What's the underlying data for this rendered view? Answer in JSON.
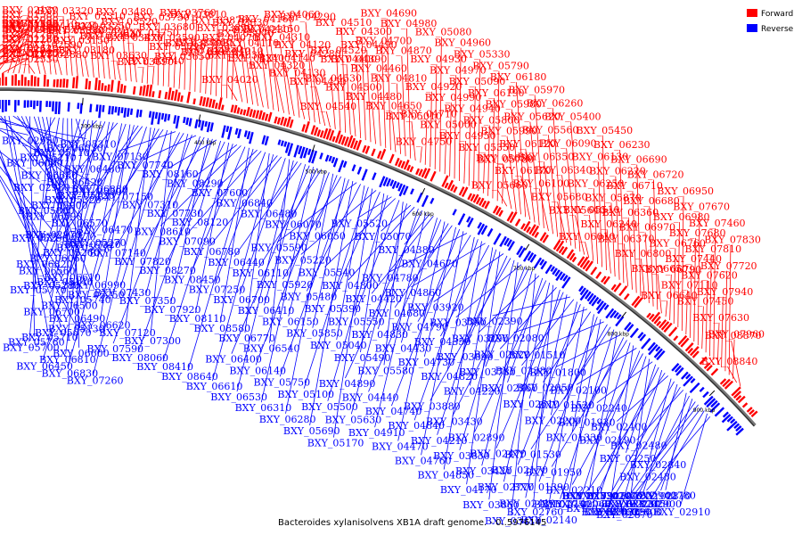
{
  "caption": "Bacteroides xylanisolvens XB1A draft genome. - 0..5976145",
  "legend": {
    "forward_label": "Forward",
    "reverse_label": "Reverse",
    "forward_color": "#ff0000",
    "reverse_color": "#0000ff"
  },
  "scale_ticks": [
    "200 kbp",
    "300 kbp",
    "400 kbp",
    "500 kbp",
    "600 kbp",
    "700 kbp",
    "800 kbp",
    "900 kbp"
  ],
  "forward_genes": [
    "BXY_01210",
    "BXY_01200",
    "BXY_01190",
    "BXY_01180",
    "BXY_01620",
    "BXY_01590",
    "BXY_01580",
    "BXY_01570",
    "BXY_01780",
    "BXY_02160",
    "BXY_02150",
    "BXY_02130",
    "BXY_02090",
    "BXY_02300",
    "BXY_02280",
    "BXY_02540",
    "BXY_02530",
    "BXY_02520",
    "BXY_02720",
    "BXY_02710",
    "BXY_02590",
    "BXY_02880",
    "BXY_03320",
    "BXY_03340",
    "BXY_03330",
    "BXY_03150",
    "BXY_03180",
    "BXY_03090",
    "BXY_03310",
    "BXY_03250",
    "BXY_03450",
    "BXY_03620",
    "BXY_03630",
    "BXY_03480",
    "BXY_03520",
    "BXY_03470",
    "BXY_03690",
    "BXY_03750",
    "BXY_03740",
    "BXY_03730",
    "BXY_03680",
    "BXY_03590",
    "BXY_03720",
    "BXY_03650",
    "BXY_03760",
    "BXY_03840",
    "BXY_03810",
    "BXY_03860",
    "BXY_03960",
    "BXY_03950",
    "BXY_03870",
    "BXY_03850",
    "BXY_04070",
    "BXY_04030",
    "BXY_04020",
    "BXY_04010",
    "BXY_03830",
    "BXY_03970",
    "BXY_04110",
    "BXY_04240",
    "BXY_04230",
    "BXY_04160",
    "BXY_04150",
    "BXY_04320",
    "BXY_04310",
    "BXY_04140",
    "BXY_04060",
    "BXY_04130",
    "BXY_04120",
    "BXY_04290",
    "BXY_04280",
    "BXY_04450",
    "BXY_04540",
    "BXY_04530",
    "BXY_04520",
    "BXY_04510",
    "BXY_04400",
    "BXY_04500",
    "BXY_04390",
    "BXY_04300",
    "BXY_04490",
    "BXY_04480",
    "BXY_04460",
    "BXY_04700",
    "BXY_04690",
    "BXY_04650",
    "BXY_04810",
    "BXY_04870",
    "BXY_04980",
    "BXY_05010",
    "BXY_04750",
    "BXY_04710",
    "BXY_04920",
    "BXY_04930",
    "BXY_05080",
    "BXY_05000",
    "BXY_04990",
    "BXY_04970",
    "BXY_04960",
    "BXY_04950",
    "BXY_04940",
    "BXY_05090",
    "BXY_05330",
    "BXY_05350",
    "BXY_05800",
    "BXY_06190",
    "BXY_05790",
    "BXY_05780",
    "BXY_05660",
    "BXY_05650",
    "BXY_05990",
    "BXY_05980",
    "BXY_06180",
    "BXY_06170",
    "BXY_06120",
    "BXY_05620",
    "BXY_05970",
    "BXY_06100",
    "BXY_06350",
    "BXY_05560",
    "BXY_06260",
    "BXY_05680",
    "BXY_06340",
    "BXY_06090",
    "BXY_05400",
    "BXY_05640",
    "BXY_06010",
    "BXY_05510",
    "BXY_06250",
    "BXY_06130",
    "BXY_05450",
    "BXY_06240",
    "BXY_05870",
    "BXY_06220",
    "BXY_06230",
    "BXY_06370",
    "BXY_06360",
    "BXY_06710",
    "BXY_06690",
    "BXY_06800",
    "BXY_06970",
    "BXY_06680",
    "BXY_06720",
    "BXY_06650",
    "BXY_06640",
    "BXY_06790",
    "BXY_06760",
    "BXY_06980",
    "BXY_06950",
    "BXY_07110",
    "BXY_07440",
    "BXY_07680",
    "BXY_07670",
    "BXY_07450",
    "BXY_07620",
    "BXY_07810",
    "BXY_07460",
    "BXY_07630",
    "BXY_07940",
    "BXY_07720",
    "BXY_07830",
    "BXY_07960",
    "BXY_08840",
    "BXY_08870"
  ],
  "reverse_genes": [
    "BXY_02950",
    "BXY_02980",
    "BXY_02970",
    "BXY_05140",
    "BXY_05130",
    "BXY_05310",
    "BXY_05300",
    "BXY_05290",
    "BXY_05280",
    "BXY_05670",
    "BXY_06030",
    "BXY_05120",
    "BXY_05270",
    "BXY_05770",
    "BXY_05710",
    "BXY_05110",
    "BXY_05320",
    "BXY_05930",
    "BXY_05250",
    "BXY_05760",
    "BXY_05210",
    "BXY_05900",
    "BXY_05260",
    "BXY_05740",
    "BXY_05700",
    "BXY_06080",
    "BXY_05860",
    "BXY_06060",
    "BXY_06500",
    "BXY_06600",
    "BXY_06460",
    "BXY_06590",
    "BXY_06820",
    "BXY_06700",
    "BXY_06810",
    "BXY_06680",
    "BXY_06570",
    "BXY_06560",
    "BXY_06490",
    "BXY_06450",
    "BXY_06420",
    "BXY_06470",
    "BXY_06610",
    "BXY_06620",
    "BXY_06830",
    "BXY_06880",
    "BXY_06870",
    "BXY_06990",
    "BXY_07120",
    "BXY_07260",
    "BXY_07150",
    "BXY_07320",
    "BXY_07430",
    "BXY_07300",
    "BXY_07130",
    "BXY_07310",
    "BXY_07140",
    "BXY_07350",
    "BXY_07590",
    "BXY_07740",
    "BXY_07730",
    "BXY_07820",
    "BXY_07920",
    "BXY_08060",
    "BXY_08160",
    "BXY_08120",
    "BXY_08270",
    "BXY_08110",
    "BXY_08410",
    "BXY_08290",
    "BXY_08610",
    "BXY_08450",
    "BXY_08580",
    "BXY_08640",
    "BXY_07600",
    "BXY_07090",
    "BXY_07250",
    "BXY_06770",
    "BXY_06610",
    "BXY_06840",
    "BXY_06780",
    "BXY_06700",
    "BXY_06540",
    "BXY_06530",
    "BXY_06480",
    "BXY_06440",
    "BXY_06410",
    "BXY_06400",
    "BXY_06310",
    "BXY_06070",
    "BXY_06110",
    "BXY_06150",
    "BXY_06140",
    "BXY_06280",
    "BXY_06050",
    "BXY_05920",
    "BXY_05850",
    "BXY_05750",
    "BXY_05690",
    "BXY_05590",
    "BXY_05480",
    "BXY_05040",
    "BXY_05100",
    "BXY_05170",
    "BXY_05220",
    "BXY_05390",
    "BXY_05490",
    "BXY_05500",
    "BXY_05520",
    "BXY_05540",
    "BXY_05550",
    "BXY_05580",
    "BXY_05630",
    "BXY_05070",
    "BXY_04800",
    "BXY_04830",
    "BXY_04890",
    "BXY_04910",
    "BXY_04380",
    "BXY_04420",
    "BXY_04430",
    "BXY_04440",
    "BXY_04470",
    "BXY_04670",
    "BXY_04680",
    "BXY_04730",
    "BXY_04740",
    "BXY_04760",
    "BXY_04780",
    "BXY_04790",
    "BXY_04820",
    "BXY_04840",
    "BXY_04850",
    "BXY_04860",
    "BXY_04350",
    "BXY_04220",
    "BXY_04210",
    "BXY_04170",
    "BXY_03920",
    "BXY_03890",
    "BXY_03880",
    "BXY_03830",
    "BXY_03860",
    "BXY_03790",
    "BXY_03780",
    "BXY_03430",
    "BXY_03420",
    "BXY_03410",
    "BXY_03290",
    "BXY_02960",
    "BXY_02890",
    "BXY_02770",
    "BXY_02760",
    "BXY_02620",
    "BXY_02510",
    "BXY_02470",
    "BXY_02410",
    "BXY_02390",
    "BXY_02380",
    "BXY_02200",
    "BXY_02170",
    "BXY_02140",
    "BXY_02080",
    "BXY_02050",
    "BXY_01330",
    "BXY_01390",
    "BXY_01400",
    "BXY_01510",
    "BXY_01520",
    "BXY_01530",
    "BXY_01750",
    "BXY_01790",
    "BXY_01800",
    "BXY_01930",
    "BXY_01950",
    "BXY_02060",
    "BXY_02070",
    "BXY_02100",
    "BXY_02190",
    "BXY_02210",
    "BXY_02220",
    "BXY_02230",
    "BXY_02240",
    "BXY_02250",
    "BXY_02260",
    "BXY_02290",
    "BXY_02330",
    "BXY_02400",
    "BXY_02430",
    "BXY_02440",
    "BXY_02450",
    "BXY_02460",
    "BXY_02480",
    "BXY_02780",
    "BXY_02800",
    "BXY_02810",
    "BXY_02820",
    "BXY_02840",
    "BXY_02870",
    "BXY_02900",
    "BXY_02910",
    "BXY_02940"
  ]
}
